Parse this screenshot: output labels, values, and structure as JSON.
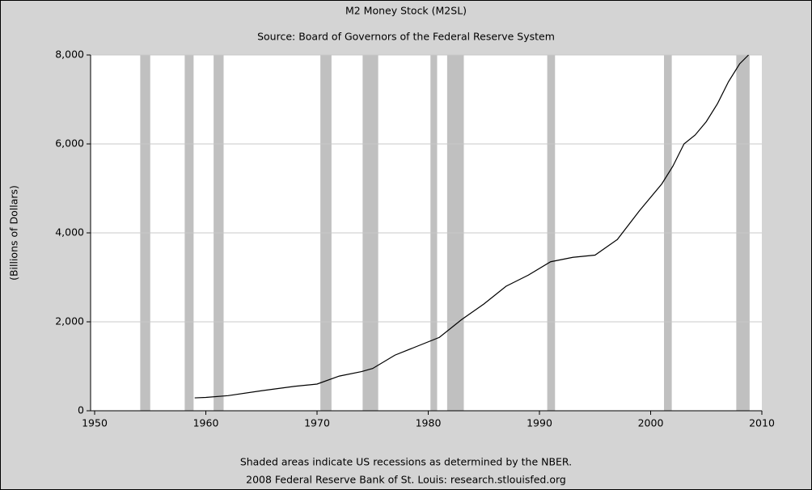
{
  "chart_data": {
    "type": "line",
    "title": "M2 Money Stock (M2SL)",
    "subtitle": "Source: Board of Governors of the Federal Reserve System",
    "ylabel": "(Billions of Dollars)",
    "notes": [
      "Shaded areas indicate US recessions as determined by the NBER.",
      "2008 Federal Reserve Bank of St. Louis: research.stlouisfed.org"
    ],
    "x": [
      1959,
      1960,
      1962,
      1965,
      1968,
      1970,
      1972,
      1974,
      1975,
      1977,
      1979,
      1981,
      1983,
      1985,
      1987,
      1989,
      1991,
      1993,
      1995,
      1997,
      1999,
      2001,
      2002,
      2003,
      2004,
      2005,
      2006,
      2007,
      2008,
      2008.8
    ],
    "series": [
      {
        "name": "M2SL",
        "color": "#000000",
        "values": [
          290,
          300,
          340,
          450,
          550,
          600,
          780,
          880,
          950,
          1250,
          1450,
          1650,
          2050,
          2400,
          2800,
          3050,
          3350,
          3450,
          3500,
          3850,
          4500,
          5100,
          5500,
          6000,
          6200,
          6500,
          6900,
          7400,
          7800,
          8000
        ]
      }
    ],
    "recessions": [
      [
        1954.1,
        1955.0
      ],
      [
        1958.1,
        1958.9
      ],
      [
        1960.7,
        1961.6
      ],
      [
        1970.3,
        1971.3
      ],
      [
        1974.1,
        1975.5
      ],
      [
        1980.2,
        1980.8
      ],
      [
        1981.7,
        1983.2
      ],
      [
        1990.7,
        1991.4
      ],
      [
        2001.2,
        2001.9
      ],
      [
        2007.7,
        2008.9
      ]
    ],
    "recession_color": "#c0c0c0",
    "xlim": [
      1950,
      2010
    ],
    "xticks": [
      1950,
      1960,
      1970,
      1980,
      1990,
      2000,
      2010
    ],
    "ylim": [
      0,
      8000
    ],
    "yticks": [
      0,
      {
        "value": 2000,
        "label": "2,000"
      },
      {
        "value": 4000,
        "label": "4,000"
      },
      {
        "value": 6000,
        "label": "6,000"
      },
      {
        "value": 8000,
        "label": "8,000"
      }
    ],
    "grid": true
  }
}
